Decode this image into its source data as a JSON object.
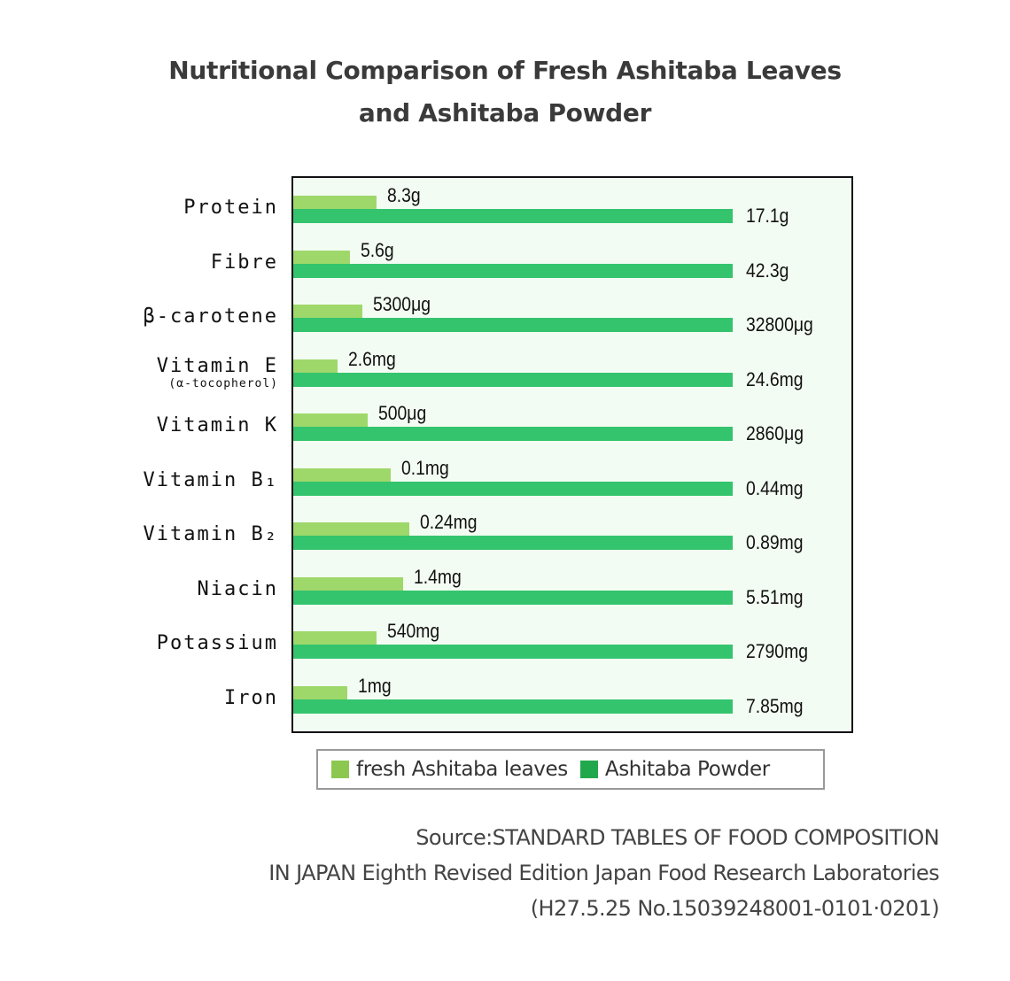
{
  "title": {
    "line1": "Nutritional Comparison of Fresh Ashitaba Leaves",
    "line2": "and Ashitaba Powder"
  },
  "colors": {
    "fresh": "#9ed86a",
    "powder": "#34c46e",
    "chart_bg": "#f3fcf2",
    "legend_fresh": "#8cc850",
    "legend_powder": "#22a84c"
  },
  "legend": {
    "fresh_label": "fresh Ashitaba leaves",
    "powder_label": "Ashitaba Powder"
  },
  "source": {
    "line1": "Source:STANDARD TABLES OF FOOD COMPOSITION",
    "line2": "IN JAPAN Eighth Revised Edition Japan Food Research Laboratories",
    "line3": "(H27.5.25 No.15039248001-0101·0201)"
  },
  "chart_data": {
    "type": "bar",
    "orientation": "horizontal",
    "title": "Nutritional Comparison of Fresh Ashitaba Leaves and Ashitaba Powder",
    "xlabel": "",
    "ylabel": "",
    "grid": false,
    "legend_position": "bottom",
    "note": "Bars are relative: Ashitaba Powder shown as full length (100%) per nutrient; fresh leaves shown proportionally. Values are data labels.",
    "categories": [
      "Protein",
      "Fibre",
      "β-carotene",
      "Vitamin E (α-tocopherol)",
      "Vitamin K",
      "Vitamin B1",
      "Vitamin B2",
      "Niacin",
      "Potassium",
      "Iron"
    ],
    "series": [
      {
        "name": "fresh Ashitaba leaves",
        "values": [
          8.3,
          5.6,
          5300,
          2.6,
          500,
          0.1,
          0.24,
          1.4,
          540,
          1
        ],
        "labels": [
          "8.3g",
          "5.6g",
          "5300μg",
          "2.6mg",
          "500μg",
          "0.1mg",
          "0.24mg",
          "1.4mg",
          "540mg",
          "1mg"
        ],
        "bar_pct": [
          19,
          13,
          16,
          10,
          17,
          22,
          26,
          25,
          19,
          12
        ]
      },
      {
        "name": "Ashitaba Powder",
        "values": [
          17.1,
          42.3,
          32800,
          24.6,
          2860,
          0.44,
          0.89,
          5.51,
          2790,
          7.85
        ],
        "labels": [
          "17.1g",
          "42.3g",
          "32800μg",
          "24.6mg",
          "2860μg",
          "0.44mg",
          "0.89mg",
          "5.51mg",
          "2790mg",
          "7.85mg"
        ],
        "bar_pct": [
          100,
          100,
          100,
          100,
          100,
          100,
          100,
          100,
          100,
          100
        ]
      }
    ],
    "units": [
      "g",
      "g",
      "μg",
      "mg",
      "μg",
      "mg",
      "mg",
      "mg",
      "mg",
      "mg"
    ]
  },
  "rows": [
    {
      "label": "Protein",
      "sub": "",
      "fresh": "8.3g",
      "powder": "17.1g",
      "fresh_w": 94
    },
    {
      "label": "Fibre",
      "sub": "",
      "fresh": "5.6g",
      "powder": "42.3g",
      "fresh_w": 64
    },
    {
      "label": "β-carotene",
      "sub": "",
      "fresh": "5300μg",
      "powder": "32800μg",
      "fresh_w": 78
    },
    {
      "label": "Vitamin E",
      "sub": "(α-tocopherol)",
      "fresh": "2.6mg",
      "powder": "24.6mg",
      "fresh_w": 50
    },
    {
      "label": "Vitamin K",
      "sub": "",
      "fresh": "500μg",
      "powder": "2860μg",
      "fresh_w": 84
    },
    {
      "label": "Vitamin B₁",
      "sub": "",
      "fresh": "0.1mg",
      "powder": "0.44mg",
      "fresh_w": 110
    },
    {
      "label": "Vitamin B₂",
      "sub": "",
      "fresh": "0.24mg",
      "powder": "0.89mg",
      "fresh_w": 131
    },
    {
      "label": "Niacin",
      "sub": "",
      "fresh": "1.4mg",
      "powder": "5.51mg",
      "fresh_w": 124
    },
    {
      "label": "Potassium",
      "sub": "",
      "fresh": "540mg",
      "powder": "2790mg",
      "fresh_w": 94
    },
    {
      "label": "Iron",
      "sub": "",
      "fresh": "1mg",
      "powder": "7.85mg",
      "fresh_w": 61
    }
  ]
}
